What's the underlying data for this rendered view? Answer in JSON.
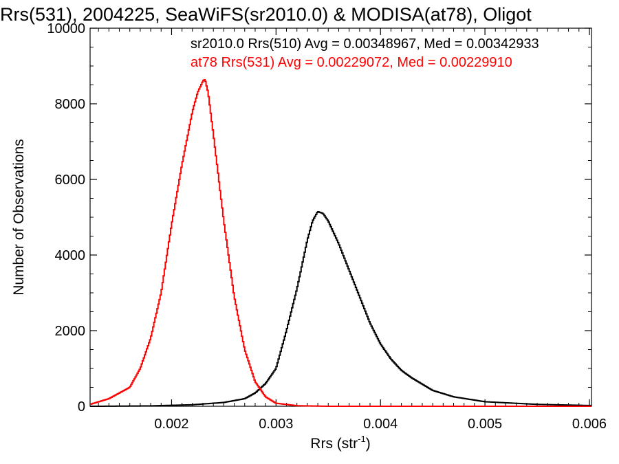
{
  "chart_data": {
    "type": "histogram",
    "title": "Rrs(531), 2004225, SeaWiFS(sr2010.0) & MODISA(at78), Oligot",
    "xlabel_main": "Rrs (str",
    "xlabel_sup": "-1",
    "xlabel_close": ")",
    "ylabel": "Number of Observations",
    "xlim": [
      0.00122,
      0.00602
    ],
    "ylim": [
      0,
      10000
    ],
    "xticks": [
      {
        "value": 0.002,
        "label": "0.002"
      },
      {
        "value": 0.003,
        "label": "0.003"
      },
      {
        "value": 0.004,
        "label": "0.004"
      },
      {
        "value": 0.005,
        "label": "0.005"
      },
      {
        "value": 0.006,
        "label": "0.006"
      }
    ],
    "yticks": [
      {
        "value": 0,
        "label": "0"
      },
      {
        "value": 2000,
        "label": "2000"
      },
      {
        "value": 4000,
        "label": "4000"
      },
      {
        "value": 6000,
        "label": "6000"
      },
      {
        "value": 8000,
        "label": "8000"
      },
      {
        "value": 10000,
        "label": "10000"
      }
    ],
    "series": [
      {
        "name": "sr2010.0 Rrs(510)",
        "legend_text": "sr2010.0 Rrs(510) Avg = 0.00348967, Med = 0.00342933",
        "color": "#000000",
        "x": [
          0.0013,
          0.0018,
          0.0022,
          0.0025,
          0.0027,
          0.0028,
          0.0029,
          0.003,
          0.0031,
          0.0032,
          0.0033,
          0.00335,
          0.0034,
          0.00345,
          0.0035,
          0.0036,
          0.0037,
          0.0038,
          0.0039,
          0.004,
          0.0041,
          0.0042,
          0.0043,
          0.0045,
          0.0047,
          0.005,
          0.0055,
          0.006
        ],
        "y": [
          0,
          10,
          40,
          100,
          200,
          350,
          600,
          1000,
          2000,
          3100,
          4400,
          4900,
          5150,
          5100,
          4900,
          4300,
          3600,
          2900,
          2200,
          1650,
          1250,
          950,
          750,
          420,
          250,
          120,
          50,
          20
        ]
      },
      {
        "name": "at78 Rrs(531)",
        "legend_text": "at78 Rrs(531) Avg = 0.00229072, Med = 0.00229910",
        "color": "#ff0000",
        "x": [
          0.00122,
          0.0014,
          0.0016,
          0.0017,
          0.0018,
          0.0019,
          0.002,
          0.0021,
          0.0022,
          0.00225,
          0.0023,
          0.00232,
          0.00235,
          0.0024,
          0.0025,
          0.0026,
          0.0027,
          0.0028,
          0.0029,
          0.003,
          0.0032,
          0.0035,
          0.006
        ],
        "y": [
          50,
          200,
          500,
          1000,
          1800,
          3000,
          4800,
          6400,
          7800,
          8300,
          8600,
          8650,
          8300,
          7200,
          4900,
          2900,
          1500,
          650,
          250,
          80,
          15,
          0,
          0
        ]
      }
    ],
    "grid": false,
    "legend_placement": "top"
  }
}
